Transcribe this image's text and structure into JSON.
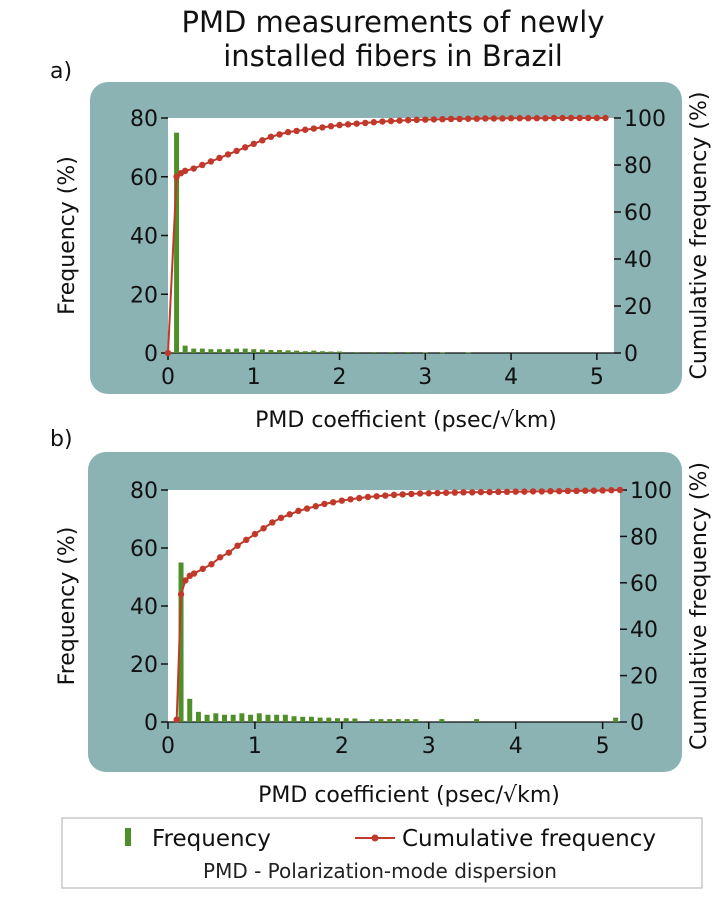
{
  "title_line1": "PMD measurements of newly",
  "title_line2": "installed fibers in Brazil",
  "colors": {
    "panel_bg": "#8bb3b3",
    "bar": "#4f8f2a",
    "line": "#c0392b"
  },
  "legend": {
    "frequency": "Frequency",
    "cumulative": "Cumulative frequency",
    "note": "PMD - Polarization-mode dispersion"
  },
  "chart_data": [
    {
      "panel_label": "a)",
      "type": "bar+line",
      "xlabel": "PMD coefficient (psec/√km)",
      "ylabel": "Frequency (%)",
      "y2label": "Cumulative frequency (%)",
      "xlim": [
        0,
        5.2
      ],
      "xticks": [
        0,
        1,
        2,
        3,
        4,
        5
      ],
      "ylim": [
        0,
        80
      ],
      "yticks": [
        0,
        20,
        40,
        60,
        80
      ],
      "y2lim": [
        0,
        100
      ],
      "y2ticks": [
        0,
        20,
        40,
        60,
        80,
        100
      ],
      "bar_series": {
        "name": "Frequency",
        "x": [
          0.1,
          0.2,
          0.3,
          0.4,
          0.5,
          0.6,
          0.7,
          0.8,
          0.9,
          1.0,
          1.1,
          1.2,
          1.3,
          1.4,
          1.5,
          1.6,
          1.7,
          1.8,
          1.9,
          2.0,
          2.2,
          2.4,
          2.6,
          2.8,
          3.0,
          3.2,
          3.5
        ],
        "values": [
          75,
          2.5,
          1.5,
          1.5,
          1.3,
          1.3,
          1.3,
          1.5,
          1.5,
          1.3,
          1.2,
          1.0,
          1.0,
          0.9,
          0.8,
          0.6,
          0.8,
          0.6,
          0.5,
          0.5,
          0.3,
          0.3,
          0.3,
          0.3,
          0.2,
          0.2,
          0.2
        ]
      },
      "line_series": {
        "name": "Cumulative frequency",
        "x": [
          0,
          0.1,
          0.15,
          0.2,
          0.3,
          0.4,
          0.5,
          0.6,
          0.7,
          0.8,
          0.9,
          1.0,
          1.1,
          1.2,
          1.3,
          1.4,
          1.5,
          1.6,
          1.7,
          1.8,
          1.9,
          2.0,
          2.1,
          2.2,
          2.3,
          2.4,
          2.5,
          2.6,
          2.7,
          2.8,
          2.9,
          3.0,
          3.1,
          3.2,
          3.3,
          3.4,
          3.5,
          3.6,
          3.7,
          3.8,
          3.9,
          4.0,
          4.1,
          4.2,
          4.3,
          4.4,
          4.5,
          4.6,
          4.7,
          4.8,
          4.9,
          5.0,
          5.1
        ],
        "values": [
          0,
          75,
          76.5,
          77.5,
          78.5,
          80,
          81.5,
          83,
          84.5,
          86,
          87.5,
          89,
          90.5,
          92,
          93,
          94,
          94.5,
          95,
          95.5,
          96,
          96.5,
          97,
          97.3,
          97.6,
          97.9,
          98.2,
          98.5,
          98.7,
          98.9,
          99.1,
          99.2,
          99.3,
          99.4,
          99.5,
          99.6,
          99.6,
          99.7,
          99.7,
          99.8,
          99.8,
          99.8,
          99.9,
          99.9,
          99.9,
          99.9,
          99.9,
          100,
          100,
          100,
          100,
          100,
          100,
          100
        ]
      }
    },
    {
      "panel_label": "b)",
      "type": "bar+line",
      "xlabel": "PMD coefficient (psec/√km)",
      "ylabel": "Frequency (%)",
      "y2label": "Cumulative frequency (%)",
      "xlim": [
        0,
        5.2
      ],
      "xticks": [
        0,
        1,
        2,
        3,
        4,
        5
      ],
      "ylim": [
        0,
        80
      ],
      "yticks": [
        0,
        20,
        40,
        60,
        80
      ],
      "y2lim": [
        0,
        100
      ],
      "y2ticks": [
        0,
        20,
        40,
        60,
        80,
        100
      ],
      "bar_series": {
        "name": "Frequency",
        "x": [
          0.15,
          0.25,
          0.35,
          0.45,
          0.55,
          0.65,
          0.75,
          0.85,
          0.95,
          1.05,
          1.15,
          1.25,
          1.35,
          1.45,
          1.55,
          1.65,
          1.75,
          1.85,
          1.95,
          2.05,
          2.15,
          2.35,
          2.45,
          2.55,
          2.65,
          2.75,
          2.85,
          3.15,
          3.55,
          5.15
        ],
        "values": [
          55,
          8,
          3.5,
          2.5,
          3,
          2.5,
          2.5,
          3,
          2.5,
          3,
          2.5,
          2.5,
          2.5,
          2.0,
          1.8,
          1.8,
          1.5,
          1.5,
          1.3,
          1.3,
          1.2,
          1.0,
          1.0,
          1.0,
          1.0,
          1.0,
          1.0,
          1.0,
          1.0,
          1.5
        ]
      },
      "line_series": {
        "name": "Cumulative frequency",
        "x": [
          0.1,
          0.15,
          0.2,
          0.25,
          0.3,
          0.4,
          0.5,
          0.6,
          0.7,
          0.8,
          0.9,
          1.0,
          1.1,
          1.2,
          1.3,
          1.4,
          1.5,
          1.6,
          1.7,
          1.8,
          1.9,
          2.0,
          2.1,
          2.2,
          2.3,
          2.4,
          2.5,
          2.6,
          2.7,
          2.8,
          2.9,
          3.0,
          3.1,
          3.2,
          3.3,
          3.4,
          3.5,
          3.6,
          3.7,
          3.8,
          3.9,
          4.0,
          4.1,
          4.2,
          4.3,
          4.4,
          4.5,
          4.6,
          4.7,
          4.8,
          4.9,
          5.0,
          5.1,
          5.2
        ],
        "values": [
          1,
          55,
          61,
          63,
          64,
          66,
          68,
          71,
          73,
          76,
          78.5,
          81,
          83.5,
          86,
          88,
          89.5,
          91,
          92,
          93,
          94,
          94.7,
          95.4,
          96,
          96.5,
          97,
          97.3,
          97.6,
          97.9,
          98.1,
          98.3,
          98.5,
          98.6,
          98.7,
          98.8,
          98.9,
          99,
          99,
          99.1,
          99.1,
          99.2,
          99.2,
          99.3,
          99.3,
          99.4,
          99.4,
          99.5,
          99.5,
          99.6,
          99.6,
          99.7,
          99.7,
          99.8,
          99.9,
          100
        ]
      }
    }
  ]
}
